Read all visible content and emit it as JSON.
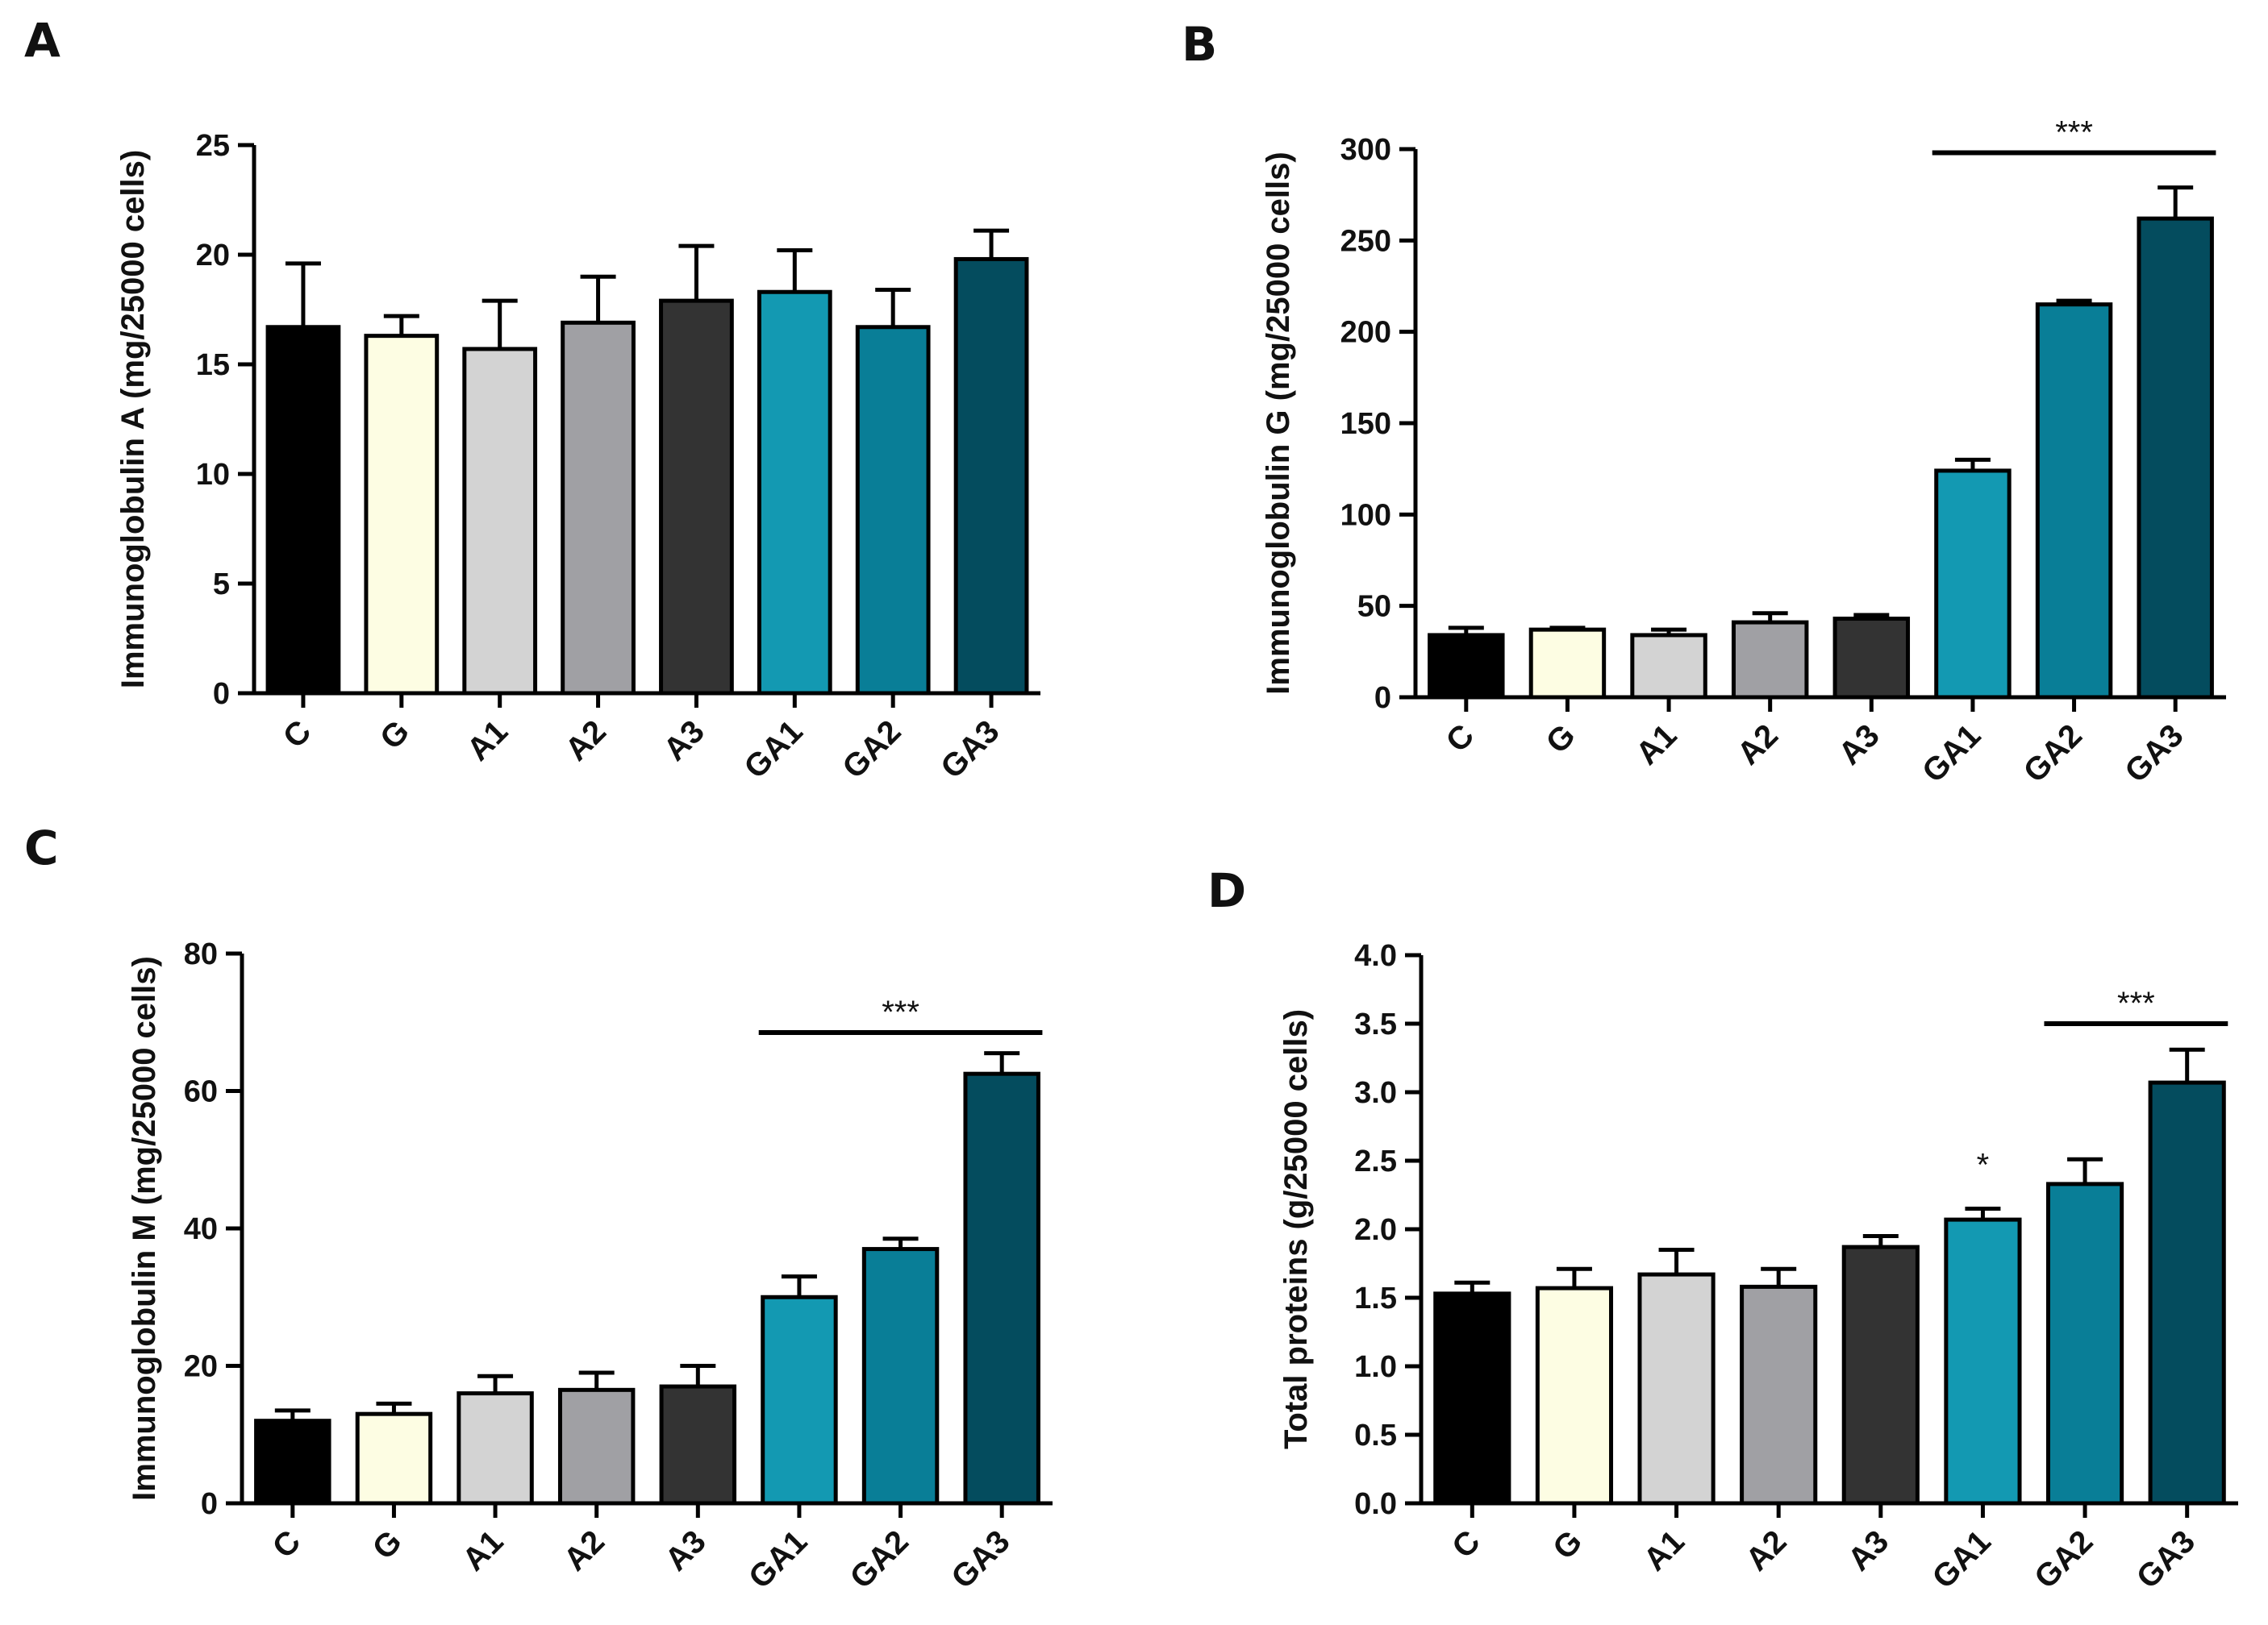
{
  "figure": {
    "colors": {
      "C": "#000000",
      "G": "#FDFDE3",
      "A1": "#D3D3D3",
      "A2": "#A0A0A4",
      "A3": "#333333",
      "GA1": "#1399B2",
      "GA2": "#097E97",
      "GA3": "#044C5E"
    }
  },
  "chart_data": [
    {
      "id": "A",
      "panel_letter": "A",
      "type": "bar",
      "title": "",
      "xlabel": "",
      "ylabel": "Immunoglobulin A (mg/25000 cells)",
      "categories": [
        "C",
        "G",
        "A1",
        "A2",
        "A3",
        "GA1",
        "GA2",
        "GA3"
      ],
      "values": [
        16.7,
        16.3,
        15.7,
        16.9,
        17.9,
        18.3,
        16.7,
        19.8
      ],
      "errors": [
        2.9,
        0.9,
        2.2,
        2.1,
        2.5,
        1.9,
        1.7,
        1.3
      ],
      "ylim": [
        0,
        25
      ],
      "yticks": [
        0,
        5,
        10,
        15,
        20,
        25
      ],
      "ytick_labels": [
        "0",
        "5",
        "10",
        "15",
        "20",
        "25"
      ],
      "significance": []
    },
    {
      "id": "B",
      "panel_letter": "B",
      "type": "bar",
      "title": "",
      "xlabel": "",
      "ylabel": "Immunoglobulin G (mg/25000 cells)",
      "categories": [
        "C",
        "G",
        "A1",
        "A2",
        "A3",
        "GA1",
        "GA2",
        "GA3"
      ],
      "values": [
        34,
        37,
        34,
        41,
        43,
        124,
        215,
        262
      ],
      "errors": [
        4,
        1,
        3,
        5,
        2,
        6,
        2,
        17
      ],
      "ylim": [
        0,
        300
      ],
      "yticks": [
        0,
        50,
        100,
        150,
        200,
        250,
        300
      ],
      "ytick_labels": [
        "0",
        "50",
        "100",
        "150",
        "200",
        "250",
        "300"
      ],
      "significance": [
        {
          "label": "***",
          "from": "GA1",
          "to": "GA3",
          "y": 298
        }
      ]
    },
    {
      "id": "C",
      "panel_letter": "C",
      "type": "bar",
      "title": "",
      "xlabel": "",
      "ylabel": "Immunoglobulin M (mg/25000 cells)",
      "categories": [
        "C",
        "G",
        "A1",
        "A2",
        "A3",
        "GA1",
        "GA2",
        "GA3"
      ],
      "values": [
        12,
        13,
        16,
        16.5,
        17,
        30,
        37,
        62.5
      ],
      "errors": [
        1.5,
        1.5,
        2.5,
        2.5,
        3,
        3,
        1.5,
        3
      ],
      "ylim": [
        0,
        80
      ],
      "yticks": [
        0,
        20,
        40,
        60,
        80
      ],
      "ytick_labels": [
        "0",
        "20",
        "40",
        "60",
        "80"
      ],
      "significance": [
        {
          "label": "***",
          "from": "GA1",
          "to": "GA3",
          "y": 68.5
        }
      ]
    },
    {
      "id": "D",
      "panel_letter": "D",
      "type": "bar",
      "title": "",
      "xlabel": "",
      "ylabel": "Total proteins (g/25000 cells)",
      "categories": [
        "C",
        "G",
        "A1",
        "A2",
        "A3",
        "GA1",
        "GA2",
        "GA3"
      ],
      "values": [
        1.53,
        1.57,
        1.67,
        1.58,
        1.87,
        2.07,
        2.33,
        3.07
      ],
      "errors": [
        0.08,
        0.14,
        0.18,
        0.13,
        0.08,
        0.08,
        0.18,
        0.24
      ],
      "ylim": [
        0,
        4.0
      ],
      "yticks": [
        0,
        0.5,
        1.0,
        1.5,
        2.0,
        2.5,
        3.0,
        3.5,
        4.0
      ],
      "ytick_labels": [
        "0.0",
        "0.5",
        "1.0",
        "1.5",
        "2.0",
        "2.5",
        "3.0",
        "3.5",
        "4.0"
      ],
      "significance": [
        {
          "label": "*",
          "over": "GA1",
          "y": 2.32
        },
        {
          "label": "***",
          "from": "GA2",
          "to": "GA3",
          "y": 3.5
        }
      ]
    }
  ]
}
